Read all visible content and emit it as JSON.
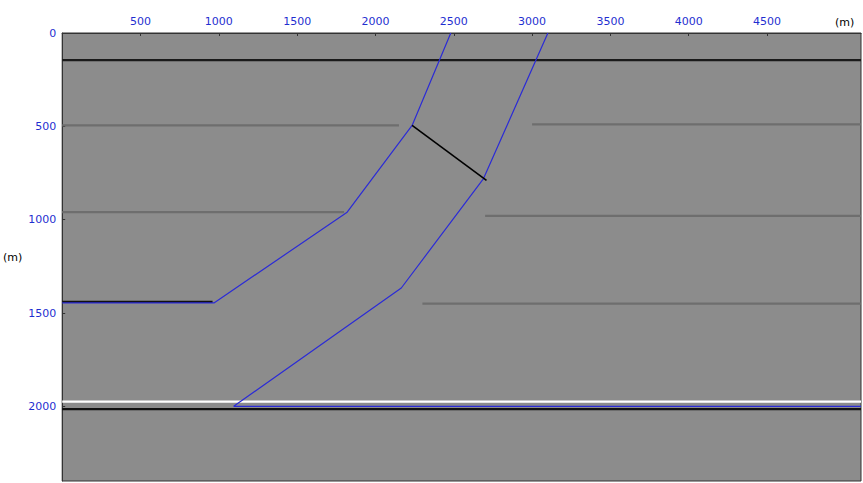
{
  "chart_data": {
    "type": "line",
    "x_label": "(m)",
    "y_label": "(m)",
    "xlim": [
      0,
      5100
    ],
    "xticks": [
      500,
      1000,
      1500,
      2000,
      2500,
      3000,
      3500,
      4000,
      4500
    ],
    "ylim": [
      0,
      2400
    ],
    "yticks": [
      0,
      500,
      1000,
      1500,
      2000
    ],
    "grid": false,
    "series": [
      {
        "color": "#1a1a1a",
        "line_style": "solid",
        "x": [
          0,
          5100
        ],
        "values": [
          145,
          145
        ]
      },
      {
        "color": "#6e6e6e",
        "line_style": "solid",
        "x": [
          0,
          2150
        ],
        "values": [
          495,
          495
        ]
      },
      {
        "color": "#6e6e6e",
        "line_style": "solid",
        "x": [
          3000,
          5100
        ],
        "values": [
          490,
          490
        ]
      },
      {
        "color": "#6e6e6e",
        "line_style": "solid",
        "x": [
          0,
          1800
        ],
        "values": [
          960,
          960
        ]
      },
      {
        "color": "#6e6e6e",
        "line_style": "solid",
        "x": [
          2700,
          5100
        ],
        "values": [
          980,
          980
        ]
      },
      {
        "color": "#111111",
        "line_style": "solid",
        "x": [
          0,
          960
        ],
        "values": [
          1440,
          1440
        ]
      },
      {
        "color": "#6e6e6e",
        "line_style": "solid",
        "x": [
          2300,
          5100
        ],
        "values": [
          1450,
          1450
        ]
      },
      {
        "color": "#ffffff",
        "line_style": "solid",
        "x": [
          0,
          5100
        ],
        "values": [
          1975,
          1975
        ]
      },
      {
        "color": "#111111",
        "line_style": "solid",
        "x": [
          0,
          5100
        ],
        "values": [
          2015,
          2015
        ]
      },
      {
        "color": "#2b2bd6",
        "line_style": "solid",
        "x": [
          2481,
          2234,
          1817,
          969,
          0
        ],
        "values": [
          0,
          495,
          962,
          1446,
          1446
        ]
      },
      {
        "color": "#2b2bd6",
        "line_style": "solid",
        "x": [
          3101,
          2690,
          2165,
          1095,
          5100
        ],
        "values": [
          0,
          780,
          1366,
          2000,
          2000
        ]
      },
      {
        "color": "#000000",
        "line_style": "solid",
        "x": [
          2234,
          2709
        ],
        "values": [
          495,
          790
        ]
      }
    ]
  }
}
